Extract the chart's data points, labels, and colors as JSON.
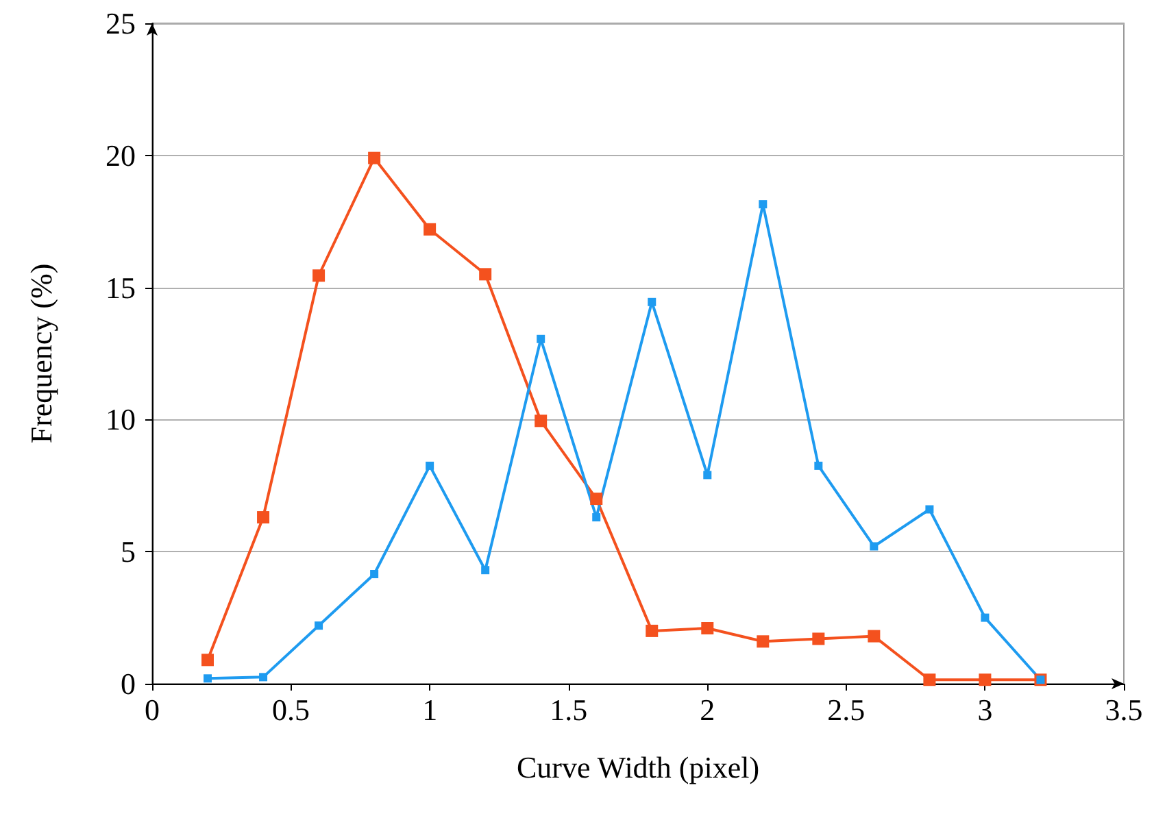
{
  "chart_data": {
    "type": "line",
    "xlabel": "Curve Width (pixel)",
    "ylabel": "Frequency (%)",
    "x": [
      0.2,
      0.4,
      0.6,
      0.8,
      1.0,
      1.2,
      1.4,
      1.6,
      1.8,
      2.0,
      2.2,
      2.4,
      2.6,
      2.8,
      3.0,
      3.2
    ],
    "series": [
      {
        "color": "#f4511e",
        "values": [
          0.9,
          6.3,
          15.45,
          19.9,
          17.2,
          15.5,
          9.95,
          7.0,
          2.0,
          2.1,
          1.6,
          1.7,
          1.8,
          0.15,
          0.15,
          0.15
        ]
      },
      {
        "color": "#1e9bf0",
        "values": [
          0.2,
          0.25,
          2.2,
          4.15,
          8.25,
          4.3,
          13.05,
          6.3,
          14.45,
          7.9,
          18.15,
          8.25,
          5.2,
          6.6,
          2.5,
          0.15
        ]
      }
    ],
    "xlim": [
      0,
      3.5
    ],
    "xticks": [
      0,
      0.5,
      1,
      1.5,
      2,
      2.5,
      3,
      3.5
    ],
    "ylim": [
      0,
      25
    ],
    "yticks": [
      0,
      5,
      10,
      15,
      20,
      25
    ],
    "grid": "y",
    "marker": "square",
    "line_style": "solid"
  }
}
